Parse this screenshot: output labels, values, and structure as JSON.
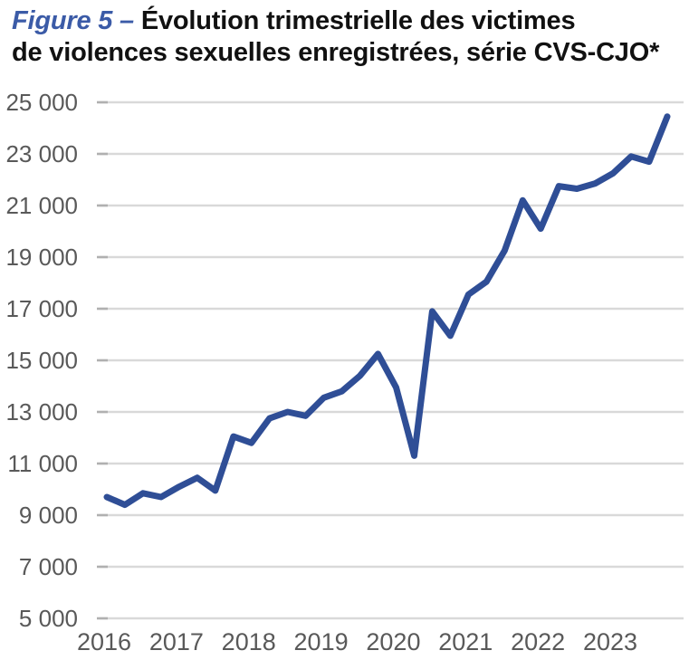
{
  "title": {
    "figure_label": "Figure 5 – ",
    "line1_rest": "Évolution trimestrielle des victimes",
    "line2": "de violences sexuelles enregistrées, série CVS-CJO*"
  },
  "chart_data": {
    "type": "line",
    "title": "Figure 5 – Évolution trimestrielle des victimes de violences sexuelles enregistrées, série CVS-CJO*",
    "series_name": "Victimes de violences sexuelles enregistrées (série CVS-CJO)",
    "x": [
      "2016-T1",
      "2016-T2",
      "2016-T3",
      "2016-T4",
      "2017-T1",
      "2017-T2",
      "2017-T3",
      "2017-T4",
      "2018-T1",
      "2018-T2",
      "2018-T3",
      "2018-T4",
      "2019-T1",
      "2019-T2",
      "2019-T3",
      "2019-T4",
      "2020-T1",
      "2020-T2",
      "2020-T3",
      "2020-T4",
      "2021-T1",
      "2021-T2",
      "2021-T3",
      "2021-T4",
      "2022-T1",
      "2022-T2",
      "2022-T3",
      "2022-T4",
      "2023-T1",
      "2023-T2",
      "2023-T3",
      "2023-T4"
    ],
    "values": [
      9700,
      9400,
      9850,
      9700,
      10100,
      10450,
      9950,
      12050,
      11800,
      12750,
      13000,
      12850,
      13550,
      13800,
      14400,
      15250,
      13950,
      11300,
      16900,
      15950,
      17550,
      18050,
      19250,
      21200,
      20100,
      21750,
      21650,
      21850,
      22250,
      22900,
      22700,
      24450
    ],
    "x_tick_labels": [
      "2016",
      "2017",
      "2018",
      "2019",
      "2020",
      "2021",
      "2022",
      "2023"
    ],
    "y_ticks": [
      25000,
      23000,
      21000,
      19000,
      17000,
      15000,
      13000,
      11000,
      9000,
      7000,
      5000
    ],
    "y_tick_labels": [
      "25 000",
      "23 000",
      "21 000",
      "19 000",
      "17 000",
      "15 000",
      "13 000",
      "11 000",
      "9 000",
      "7 000",
      "5 000"
    ],
    "ylim": [
      5000,
      25000
    ],
    "grid": "horizontal",
    "legend": "none",
    "colors": {
      "line": "#2f4e96",
      "grid": "#d9d9d9",
      "tick": "#b0b0b0",
      "axis_text": "#595959",
      "title_accent": "#3b5ba7",
      "title_text": "#111111"
    }
  }
}
